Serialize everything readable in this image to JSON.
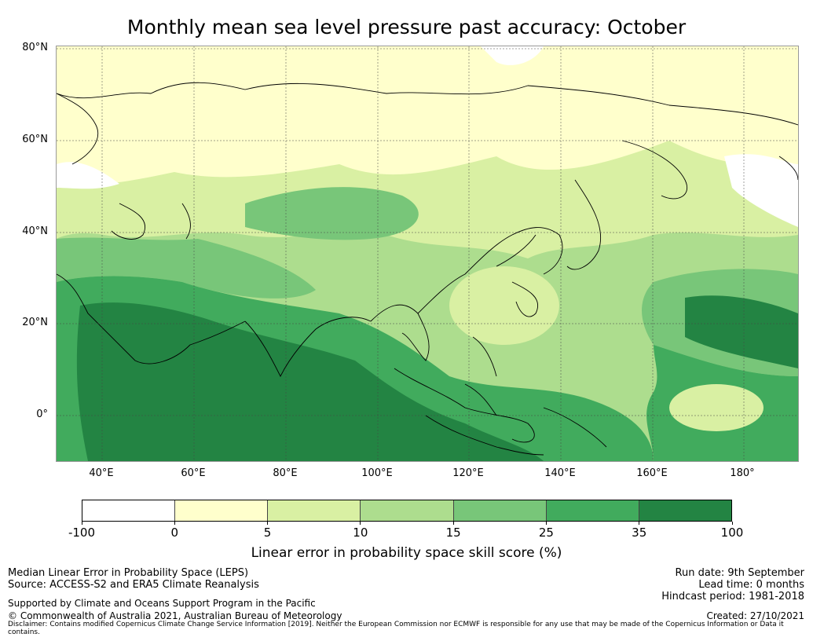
{
  "title": "Monthly mean sea level pressure past accuracy: October",
  "map": {
    "lat_labels": [
      "80°N",
      "60°N",
      "40°N",
      "20°N",
      "0°"
    ],
    "lon_labels": [
      "40°E",
      "60°E",
      "80°E",
      "100°E",
      "120°E",
      "140°E",
      "160°E",
      "180°"
    ],
    "extent": {
      "lon_min": 30,
      "lon_max": 192,
      "lat_min": -10,
      "lat_max": 80
    }
  },
  "colorbar": {
    "ticks": [
      "-100",
      "0",
      "5",
      "10",
      "15",
      "25",
      "35",
      "100"
    ],
    "colors": [
      "#ffffff",
      "#ffffcc",
      "#d9f0a3",
      "#addd8e",
      "#78c679",
      "#41ab5d",
      "#238443"
    ],
    "label": "Linear error in probability space skill score (%)"
  },
  "footer": {
    "left_line1": "Median Linear Error in Probability Space (LEPS)",
    "left_line2": "Source: ACCESS-S2 and ERA5 Climate Reanalysis",
    "supported": "Supported by Climate and Oceans Support Program in the Pacific",
    "copyright": "© Commonwealth of Australia 2021, Australian Bureau of Meteorology",
    "run_date": "Run date: 9th September",
    "lead_time": "Lead time: 0 months",
    "hindcast": "Hindcast period: 1981-2018",
    "created": "Created: 27/10/2021",
    "disclaimer": "Disclaimer: Contains modified Copernicus Climate Change Service Information [2019]. Neither the European Commission nor ECMWF is responsible for any use that may be made of the Copernicus Information or Data it contains."
  }
}
